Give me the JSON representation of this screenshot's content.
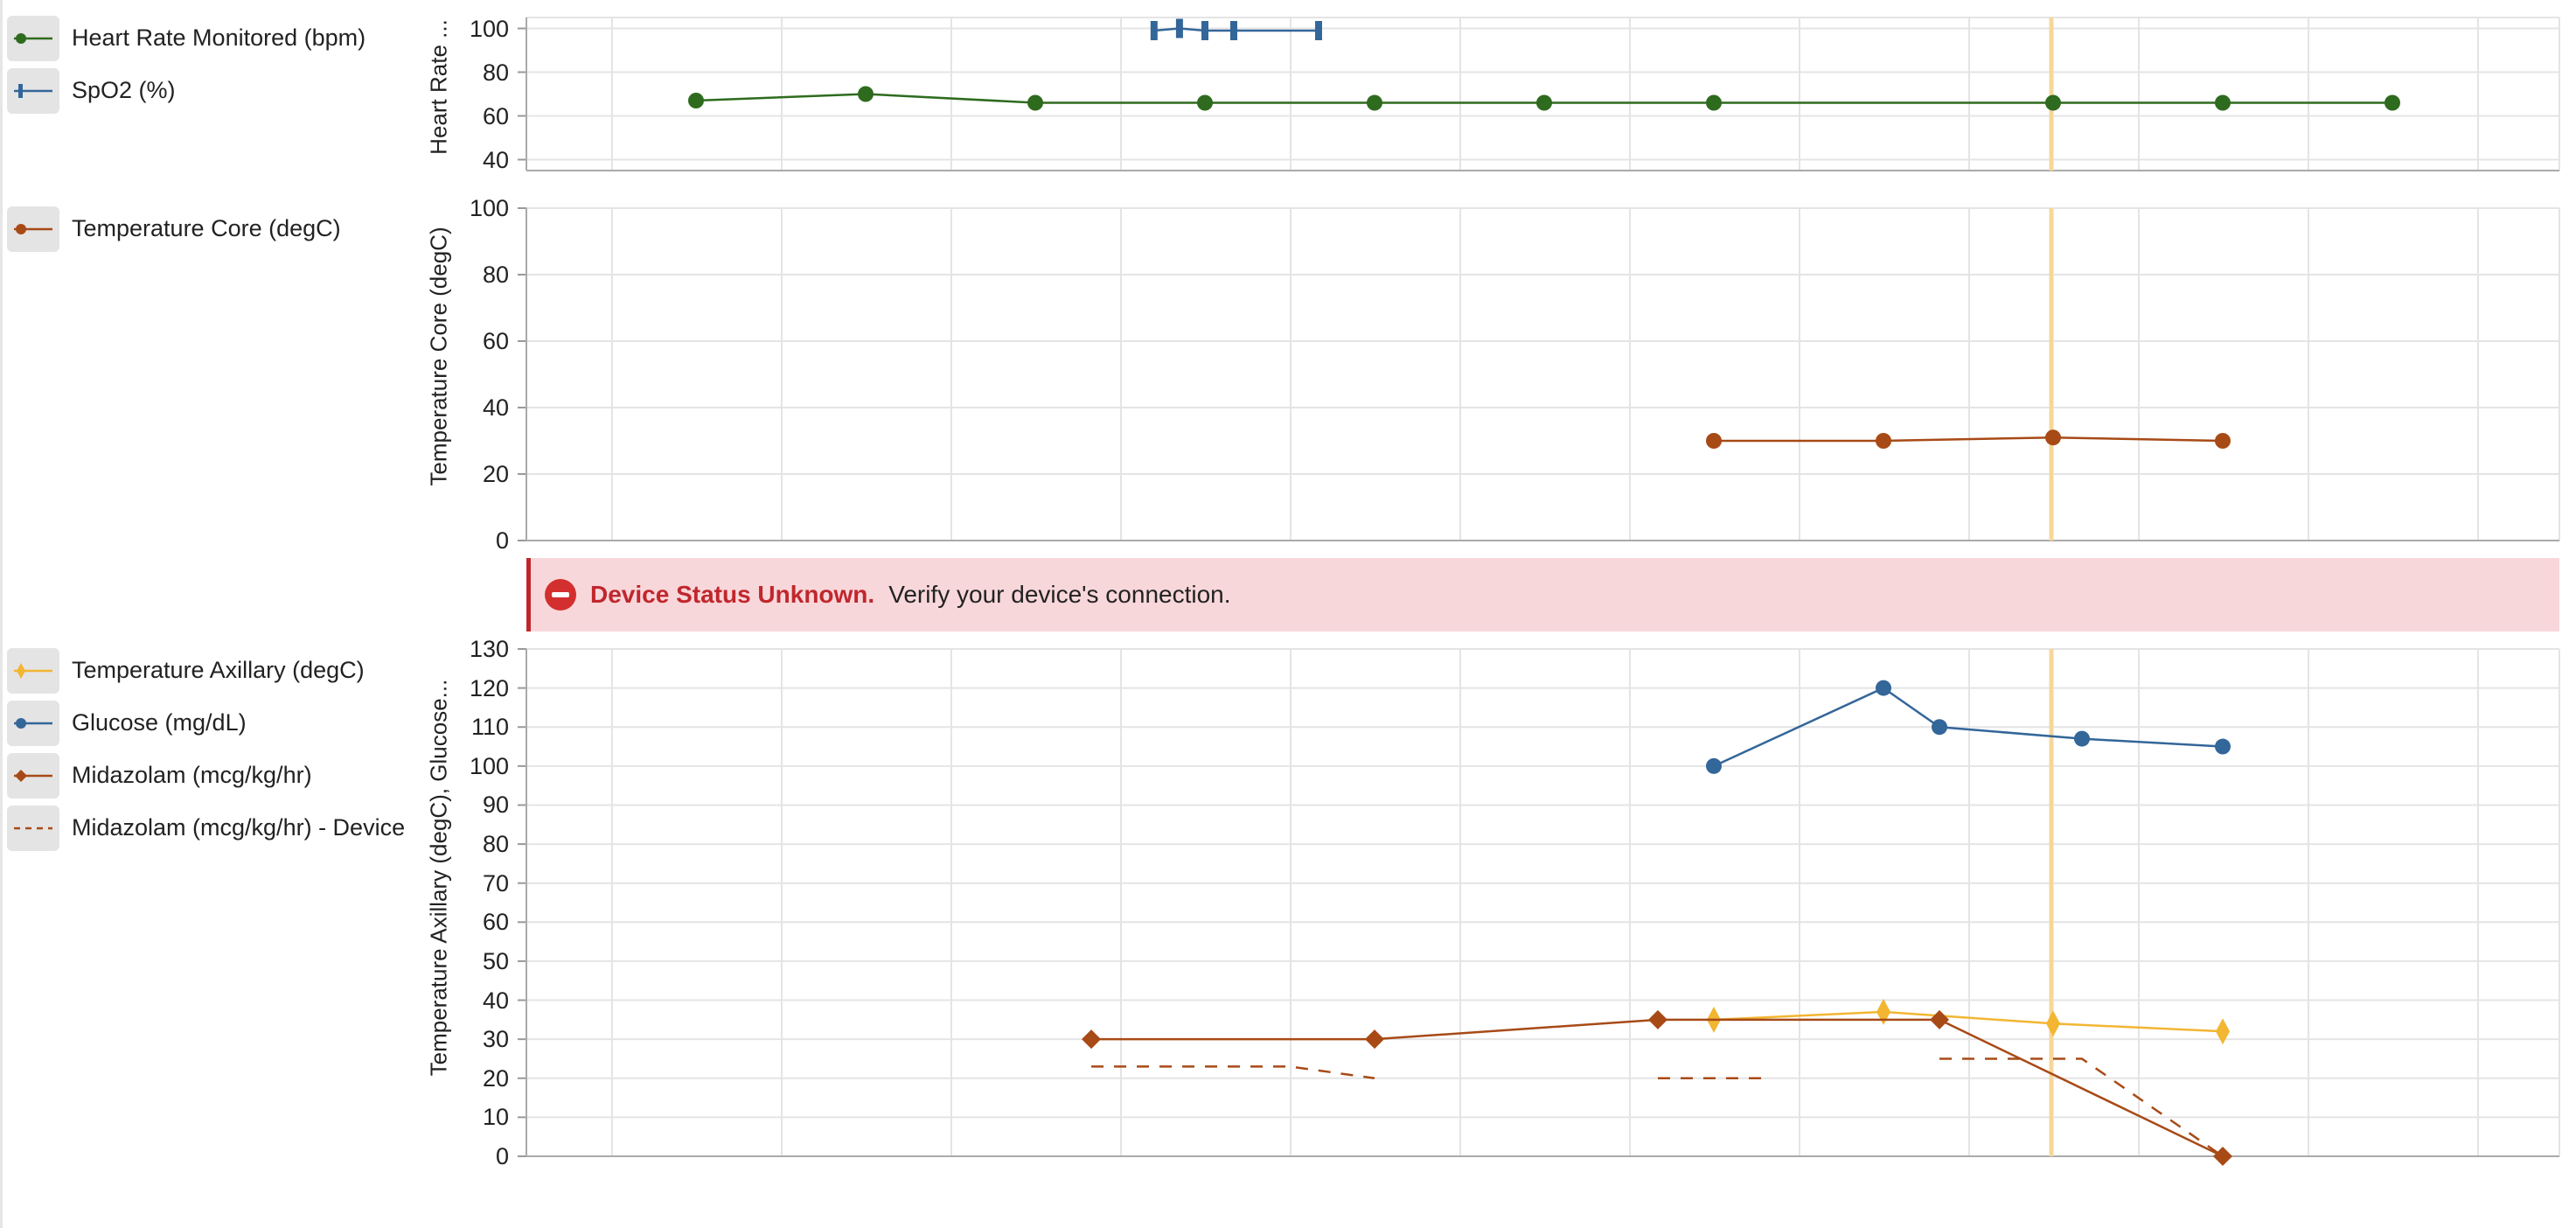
{
  "colors": {
    "heart_rate": "#2e6b1e",
    "spo2": "#336699",
    "temp_core": "#a84a16",
    "temp_axillary": "#f2b632",
    "glucose": "#336699",
    "midazolam": "#a84a16",
    "cursor": "#f6d79a",
    "grid": "#e4e4e4",
    "banner_bg": "#f8d7da",
    "banner_accent": "#c0272d"
  },
  "banner": {
    "icon": "minus-circle-icon",
    "title": "Device Status Unknown.",
    "message": "Verify your device's connection."
  },
  "chart_data": [
    {
      "type": "line",
      "ylabel": "Heart Rate ...",
      "ylim": [
        35,
        105
      ],
      "yticks": [
        40,
        60,
        80,
        100
      ],
      "grid": true,
      "legend_position": "left",
      "series": [
        {
          "name": "Heart Rate Monitored (bpm)",
          "marker": "circle",
          "icon": "line-circle-icon",
          "points": [
            [
              1,
              67
            ],
            [
              2,
              70
            ],
            [
              3,
              66
            ],
            [
              4,
              66
            ],
            [
              5,
              66
            ],
            [
              6,
              66
            ],
            [
              7,
              66
            ],
            [
              9,
              66
            ],
            [
              10,
              66
            ],
            [
              11,
              66
            ]
          ]
        },
        {
          "name": "SpO2 (%)",
          "marker": "bar",
          "icon": "line-bar-icon",
          "points": [
            [
              3.7,
              99
            ],
            [
              3.85,
              100
            ],
            [
              4.0,
              99
            ],
            [
              4.17,
              99
            ],
            [
              4.67,
              99
            ]
          ]
        }
      ]
    },
    {
      "type": "line",
      "ylabel": "Temperature Core (degC)",
      "ylim": [
        0,
        100
      ],
      "yticks": [
        0,
        20,
        40,
        60,
        80,
        100
      ],
      "grid": true,
      "legend_position": "left",
      "series": [
        {
          "name": "Temperature Core (degC)",
          "marker": "circle",
          "icon": "line-circle-icon",
          "points": [
            [
              7,
              30
            ],
            [
              8,
              30
            ],
            [
              9,
              31
            ],
            [
              10,
              30
            ]
          ]
        }
      ]
    },
    {
      "type": "line",
      "ylabel": "Temperature Axillary (degC), Glucose...",
      "ylim": [
        0,
        130
      ],
      "yticks": [
        0,
        10,
        20,
        30,
        40,
        50,
        60,
        70,
        80,
        90,
        100,
        110,
        120,
        130
      ],
      "grid": true,
      "legend_position": "left",
      "series": [
        {
          "name": "Temperature Axillary (degC)",
          "marker": "thin-diamond",
          "icon": "line-thin-diamond-icon",
          "points": [
            [
              7,
              35
            ],
            [
              8,
              37
            ],
            [
              9,
              34
            ],
            [
              10,
              32
            ]
          ]
        },
        {
          "name": "Glucose (mg/dL)",
          "marker": "circle",
          "icon": "line-circle-icon",
          "points": [
            [
              7,
              100
            ],
            [
              8,
              120
            ],
            [
              8.33,
              110
            ],
            [
              9.17,
              107
            ],
            [
              10,
              105
            ]
          ]
        },
        {
          "name": "Midazolam (mcg/kg/hr)",
          "marker": "diamond",
          "icon": "line-diamond-icon",
          "points": [
            [
              3.33,
              30
            ],
            [
              5,
              30
            ],
            [
              6.67,
              35
            ],
            [
              8.33,
              35
            ],
            [
              10,
              0
            ]
          ]
        },
        {
          "name": "Midazolam (mcg/kg/hr) - Device",
          "marker": "none",
          "dashed": true,
          "icon": "dashed-line-icon",
          "segments": [
            [
              [
                3.33,
                23
              ],
              [
                4.5,
                23
              ],
              [
                5,
                20
              ]
            ],
            [
              [
                6.67,
                20
              ],
              [
                7.33,
                20
              ]
            ],
            [
              [
                8.33,
                25
              ],
              [
                9.17,
                25
              ],
              [
                10,
                0
              ]
            ]
          ]
        }
      ]
    }
  ]
}
